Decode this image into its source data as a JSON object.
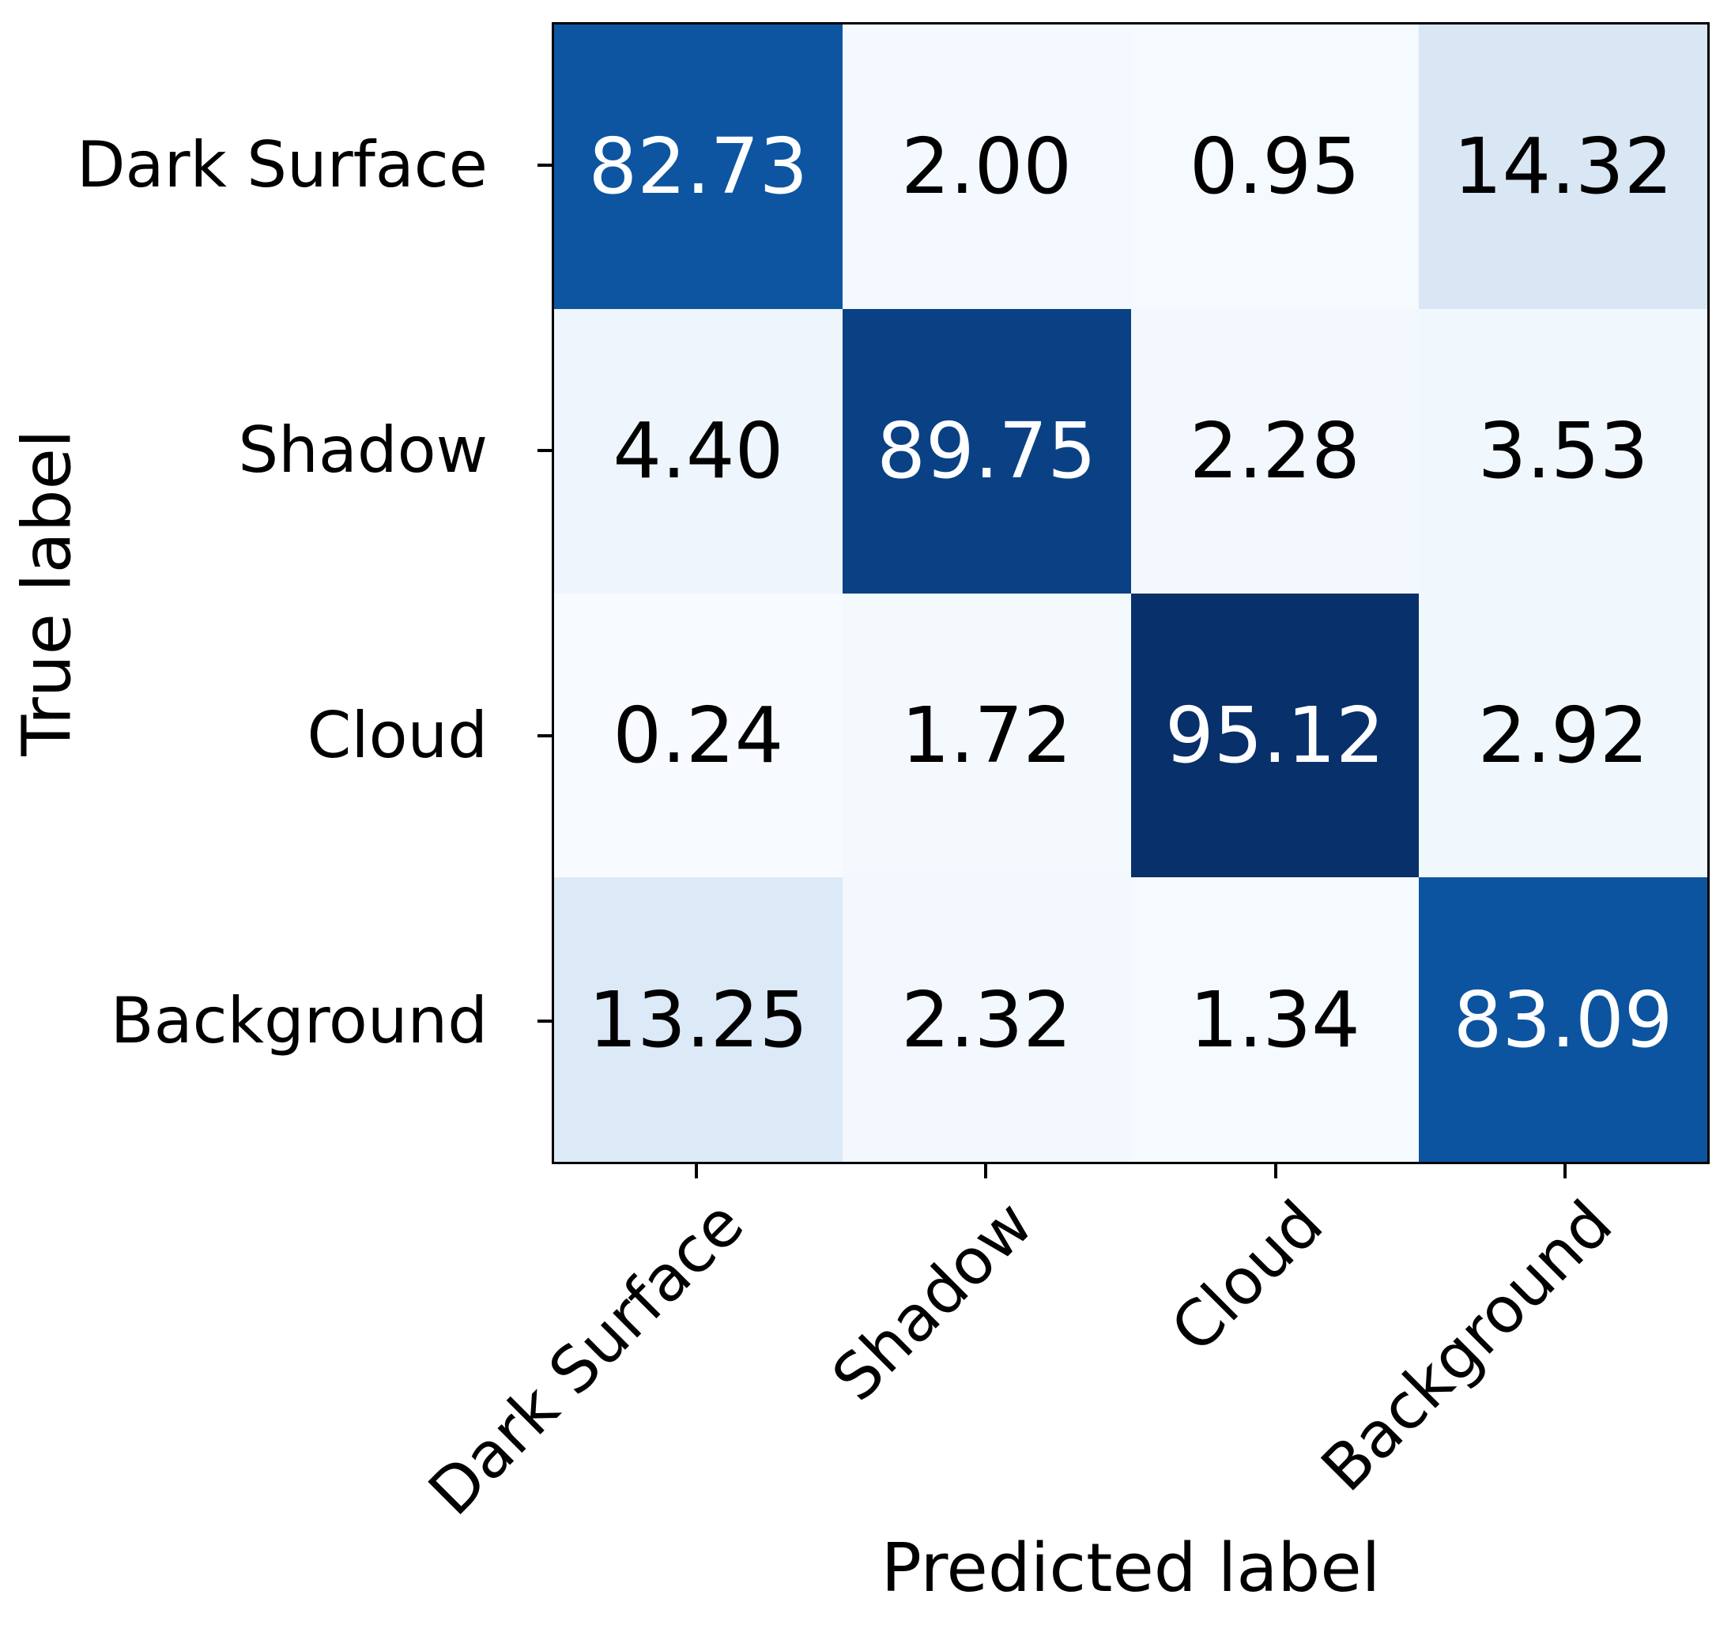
{
  "figure": {
    "background": "#ffffff",
    "axis_color": "#000000"
  },
  "chart_data": {
    "type": "heatmap",
    "title": "",
    "xlabel": "Predicted label",
    "ylabel": "True label",
    "x_categories": [
      "Dark Surface",
      "Shadow",
      "Cloud",
      "Background"
    ],
    "y_categories": [
      "Dark Surface",
      "Shadow",
      "Cloud",
      "Background"
    ],
    "values": [
      [
        82.73,
        2.0,
        0.95,
        14.32
      ],
      [
        4.4,
        89.75,
        2.28,
        3.53
      ],
      [
        0.24,
        1.72,
        95.12,
        2.92
      ],
      [
        13.25,
        2.32,
        1.34,
        83.09
      ]
    ],
    "cell_labels": [
      [
        "82.73",
        "2.00",
        "0.95",
        "14.32"
      ],
      [
        "4.40",
        "89.75",
        "2.28",
        "3.53"
      ],
      [
        "0.24",
        "1.72",
        "95.12",
        "2.92"
      ],
      [
        "13.25",
        "2.32",
        "1.34",
        "83.09"
      ]
    ],
    "cell_styles": [
      [
        "background:#0d55a1;color:#ffffff",
        "background:#f3f9fe;color:#000000",
        "background:#f5fafe;color:#000000",
        "background:#d9e6f4;color:#000000"
      ],
      [
        "background:#eef5fc;color:#000000",
        "background:#0a4184;color:#ffffff",
        "background:#f2f8fd;color:#000000",
        "background:#f0f7fd;color:#000000"
      ],
      [
        "background:#f7fbff;color:#000000",
        "background:#f4f9fe;color:#000000",
        "background:#08306b;color:#ffffff",
        "background:#f1f8fd;color:#000000"
      ],
      [
        "background:#dce9f6;color:#000000",
        "background:#f2f8fd;color:#000000",
        "background:#f4fafe;color:#000000",
        "background:#0c54a0;color:#ffffff"
      ]
    ],
    "colormap": "Blues",
    "value_range": [
      0,
      100
    ],
    "grid": false,
    "legend_position": "none",
    "x_tick_rotation_deg": 45
  }
}
